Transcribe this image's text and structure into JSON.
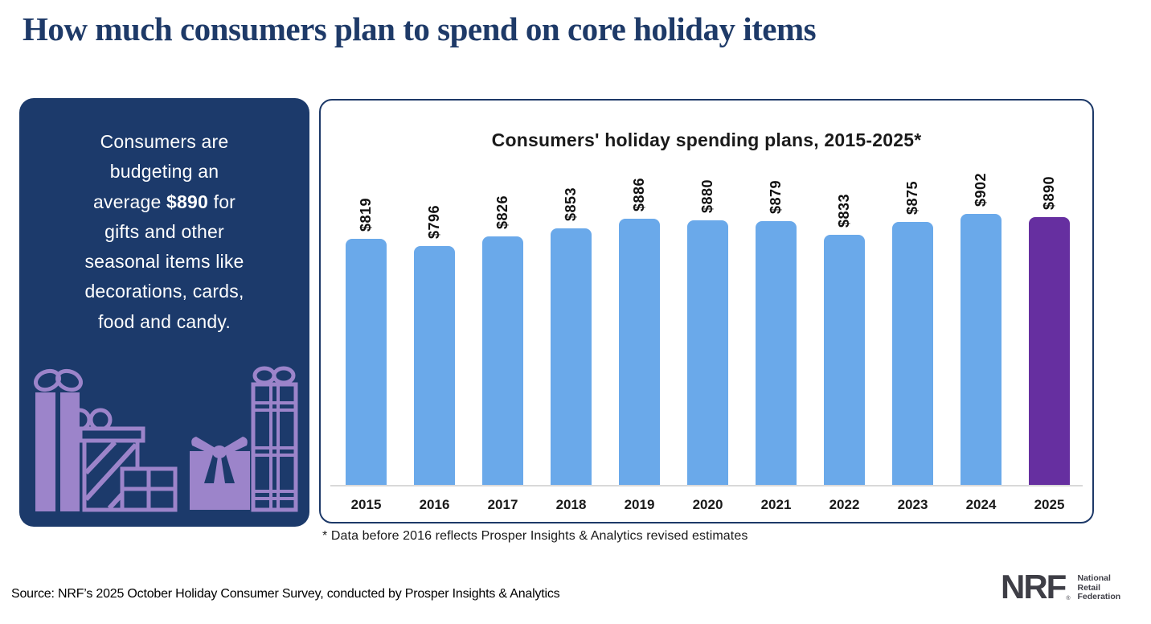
{
  "page": {
    "title": "How much consumers plan to spend on core holiday items"
  },
  "callout": {
    "background_color": "#1c3a6b",
    "illustration": "gift-boxes-icon",
    "lines": [
      {
        "text": "Consumers are"
      },
      {
        "text": "budgeting an"
      },
      {
        "pre": "average ",
        "bold": "$890",
        "post": " for"
      },
      {
        "text": "gifts and other"
      },
      {
        "text": "seasonal items like"
      },
      {
        "text": "decorations, cards,"
      },
      {
        "text": "food and candy."
      }
    ]
  },
  "chart_data": {
    "type": "bar",
    "title": "Consumers' holiday spending plans, 2015-2025*",
    "categories": [
      "2015",
      "2016",
      "2017",
      "2018",
      "2019",
      "2020",
      "2021",
      "2022",
      "2023",
      "2024",
      "2025"
    ],
    "values": [
      819,
      796,
      826,
      853,
      886,
      880,
      879,
      833,
      875,
      902,
      890
    ],
    "value_labels": [
      "$819",
      "$796",
      "$826",
      "$853",
      "$886",
      "$880",
      "$879",
      "$833",
      "$875",
      "$902",
      "$890"
    ],
    "xlabel": "",
    "ylabel": "",
    "ylim": [
      0,
      950
    ],
    "grid": false,
    "y_axis_visible": false,
    "legend": "none",
    "bar_color": "#6aa9ea",
    "highlight_color": "#662fa0",
    "highlight_index": 10,
    "footnote": "* Data before 2016 reflects Prosper Insights & Analytics revised estimates"
  },
  "footer": {
    "source": "Source: NRF’s 2025 October Holiday Consumer Survey, conducted by Prosper Insights & Analytics",
    "logo": {
      "abbr": "NRF",
      "reg": "®",
      "lines": [
        "National",
        "Retail",
        "Federation"
      ]
    }
  }
}
